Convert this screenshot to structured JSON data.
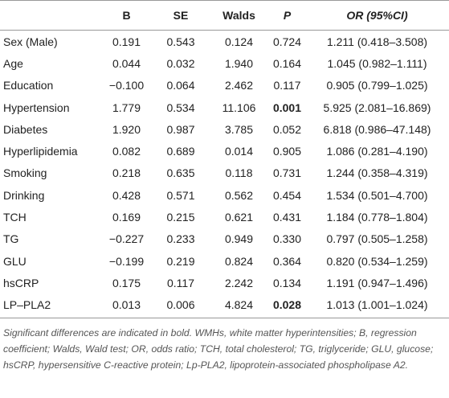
{
  "table": {
    "header": [
      "",
      "B",
      "SE",
      "Walds",
      "P",
      "OR (95%CI)"
    ],
    "rows": [
      [
        "Sex (Male)",
        "0.191",
        "0.543",
        "0.124",
        "0.724",
        "1.211 (0.418–3.508)"
      ],
      [
        "Age",
        "0.044",
        "0.032",
        "1.940",
        "0.164",
        "1.045 (0.982–1.111)"
      ],
      [
        "Education",
        "−0.100",
        "0.064",
        "2.462",
        "0.117",
        "0.905 (0.799–1.025)"
      ],
      [
        "Hypertension",
        "1.779",
        "0.534",
        "11.106",
        "0.001",
        "5.925 (2.081–16.869)"
      ],
      [
        "Diabetes",
        "1.920",
        "0.987",
        "3.785",
        "0.052",
        "6.818 (0.986–47.148)"
      ],
      [
        "Hyperlipidemia",
        "0.082",
        "0.689",
        "0.014",
        "0.905",
        "1.086 (0.281–4.190)"
      ],
      [
        "Smoking",
        "0.218",
        "0.635",
        "0.118",
        "0.731",
        "1.244 (0.358–4.319)"
      ],
      [
        "Drinking",
        "0.428",
        "0.571",
        "0.562",
        "0.454",
        "1.534 (0.501–4.700)"
      ],
      [
        "TCH",
        "0.169",
        "0.215",
        "0.621",
        "0.431",
        "1.184 (0.778–1.804)"
      ],
      [
        "TG",
        "−0.227",
        "0.233",
        "0.949",
        "0.330",
        "0.797 (0.505–1.258)"
      ],
      [
        "GLU",
        "−0.199",
        "0.219",
        "0.824",
        "0.364",
        "0.820 (0.534–1.259)"
      ],
      [
        "hsCRP",
        "0.175",
        "0.117",
        "2.242",
        "0.134",
        "1.191 (0.947–1.496)"
      ],
      [
        "LP–PLA2",
        "0.013",
        "0.006",
        "4.824",
        "0.028",
        "1.013 (1.001–1.024)"
      ]
    ]
  },
  "footnote": "Significant differences are indicated in bold. WMHs, white matter hyperintensities; B, regression coefficient; Walds, Wald test; OR, odds ratio; TCH, total cholesterol; TG, triglyceride; GLU, glucose; hsCRP, hypersensitive C-reactive protein; Lp-PLA2, lipoprotein-associated phospholipase A2."
}
